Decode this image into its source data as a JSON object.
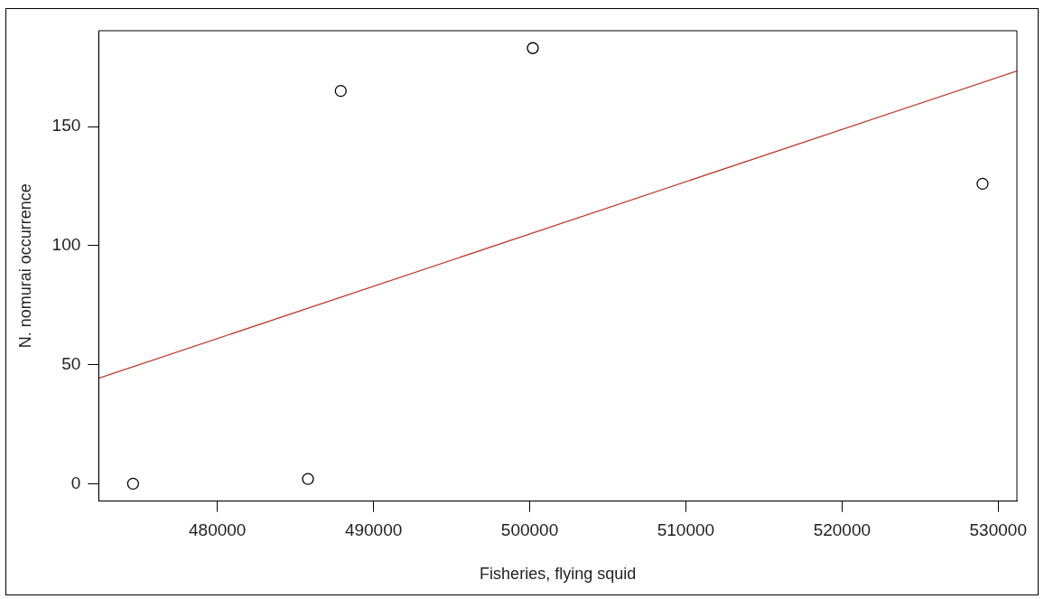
{
  "chart_data": {
    "type": "scatter",
    "xlabel": "Fisheries, flying squid",
    "ylabel": "N. nomurai occurrence",
    "xlim": [
      472400,
      531200
    ],
    "xticks": [
      480000,
      490000,
      500000,
      510000,
      520000,
      530000
    ],
    "ylim": [
      -7.3,
      190.3
    ],
    "yticks": [
      0,
      50,
      100,
      150
    ],
    "marker": "circle",
    "grid": false,
    "legend": false,
    "series": [
      {
        "type": "scatter",
        "color": "#000000",
        "x": [
          474600,
          485800,
          487900,
          500200,
          529000
        ],
        "values": [
          0,
          2,
          165,
          183,
          126
        ]
      },
      {
        "type": "line",
        "color": "#c0392b",
        "marker": "none",
        "x": [
          472400,
          531200
        ],
        "values": [
          44.3,
          173.4
        ]
      }
    ]
  }
}
